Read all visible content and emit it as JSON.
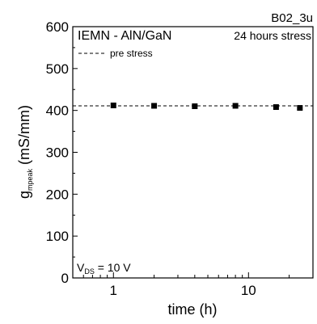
{
  "chart_data": {
    "type": "scatter",
    "corner_label": "B02_3u",
    "title": "IEMN - AlN/GaN",
    "stress_label": "24 hours stress",
    "stress_color": "#1f1fd6",
    "xlabel": "time (h)",
    "ylabel": {
      "main": "g",
      "sub": "mpeak",
      "unit": " (mS/mm)"
    },
    "xscale": "log",
    "xlim": [
      0.5,
      30
    ],
    "ylim": [
      0,
      600
    ],
    "xticks": [
      1,
      10
    ],
    "yticks": [
      0,
      100,
      200,
      300,
      400,
      500,
      600
    ],
    "grid": false,
    "series": [
      {
        "marker": "square",
        "color": "#000000",
        "x": [
          1,
          2,
          4,
          8,
          16,
          24
        ],
        "y": [
          412,
          411,
          410,
          411,
          408,
          406
        ]
      }
    ],
    "reference_line": {
      "label": "pre stress",
      "y": 411,
      "style": "dashed",
      "color": "#000000"
    },
    "annotation": {
      "main": "V",
      "sub": "DS",
      "rest": " = 10 V"
    }
  }
}
